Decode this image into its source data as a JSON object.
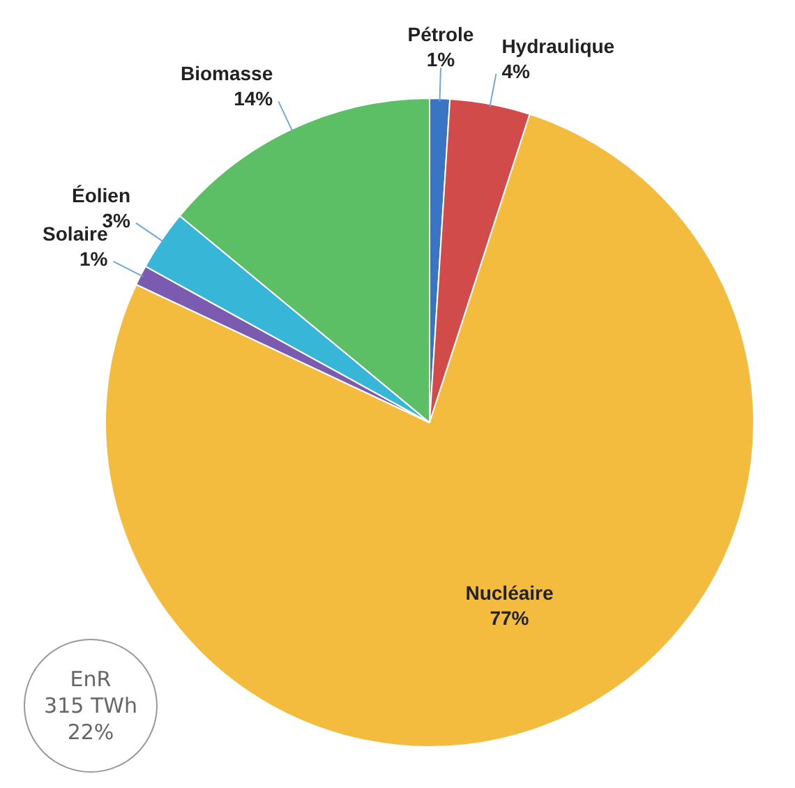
{
  "chart_data": {
    "type": "pie",
    "categories": [
      "Pétrole",
      "Hydraulique",
      "Nucléaire",
      "Solaire",
      "Éolien",
      "Biomasse"
    ],
    "values": [
      1,
      4,
      77,
      1,
      3,
      14
    ],
    "value_labels": [
      "1%",
      "4%",
      "77%",
      "1%",
      "3%",
      "14%"
    ],
    "colors": [
      "#3a74c4",
      "#d24b4b",
      "#f3bc3e",
      "#7a5bb0",
      "#38b6d8",
      "#5cbf66"
    ],
    "annotations": [
      "EnR",
      "315 TWh",
      "22%"
    ],
    "legend": false
  }
}
